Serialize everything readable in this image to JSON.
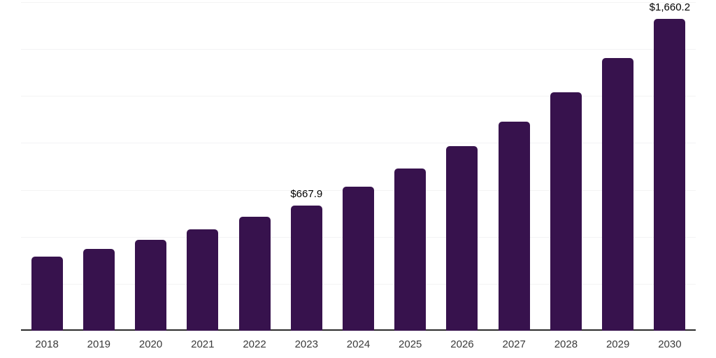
{
  "chart_data": {
    "type": "bar",
    "title": "",
    "xlabel": "",
    "ylabel": "",
    "categories": [
      "2018",
      "2019",
      "2020",
      "2021",
      "2022",
      "2023",
      "2024",
      "2025",
      "2026",
      "2027",
      "2028",
      "2029",
      "2030"
    ],
    "values": [
      394,
      435,
      484,
      540,
      607,
      667.9,
      766,
      864,
      983,
      1113,
      1270,
      1452,
      1660.2
    ],
    "data_labels": [
      "",
      "",
      "",
      "",
      "",
      "$667.9",
      "",
      "",
      "",
      "",
      "",
      "",
      "$1,660.2"
    ],
    "ylim": [
      0,
      1750
    ],
    "gridline_step": 250,
    "grid": true,
    "legend": false,
    "y_axis_labels_visible": false,
    "colors": {
      "bar": "#37124d",
      "axis_line": "#2b2b2b",
      "gridline": "#f3f3f4",
      "tick_label": "#3a3a3a",
      "data_label": "#000000",
      "background": "#ffffff"
    }
  }
}
